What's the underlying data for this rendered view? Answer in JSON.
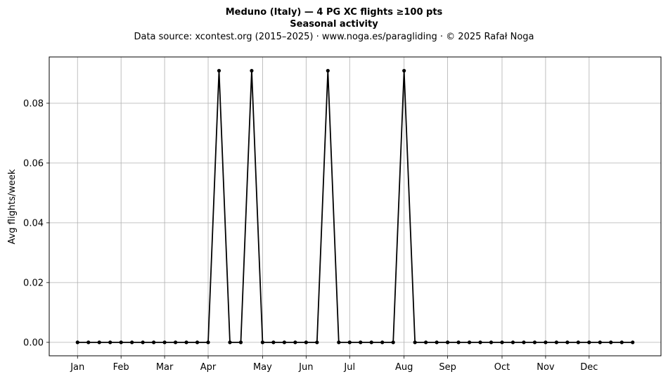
{
  "chart_data": {
    "type": "line",
    "title": "Meduno (Italy)  —  4 PG XC flights ≥100 pts",
    "subtitle": "Seasonal activity",
    "source": "Data source: xcontest.org (2015–2025)  ·  www.noga.es/paragliding  ·  © 2025 Rafał Noga",
    "xlabel": "",
    "ylabel": "Avg flights/week",
    "ylim": [
      -0.0045,
      0.0955
    ],
    "xlim": [
      -2.6,
      53.6
    ],
    "grid": true,
    "line_color": "#000000",
    "x_ticks": [
      {
        "label": "Jan",
        "week": 0
      },
      {
        "label": "Feb",
        "week": 4
      },
      {
        "label": "Mar",
        "week": 8
      },
      {
        "label": "Apr",
        "week": 12
      },
      {
        "label": "May",
        "week": 17
      },
      {
        "label": "Jun",
        "week": 21
      },
      {
        "label": "Jul",
        "week": 25
      },
      {
        "label": "Aug",
        "week": 30
      },
      {
        "label": "Sep",
        "week": 34
      },
      {
        "label": "Oct",
        "week": 39
      },
      {
        "label": "Nov",
        "week": 43
      },
      {
        "label": "Dec",
        "week": 47
      }
    ],
    "y_ticks": [
      {
        "label": "0.00",
        "value": 0.0
      },
      {
        "label": "0.02",
        "value": 0.02
      },
      {
        "label": "0.04",
        "value": 0.04
      },
      {
        "label": "0.06",
        "value": 0.06
      },
      {
        "label": "0.08",
        "value": 0.08
      }
    ],
    "series": [
      {
        "x": [
          0,
          1,
          2,
          3,
          4,
          5,
          6,
          7,
          8,
          9,
          10,
          11,
          12,
          13,
          14,
          15,
          16,
          17,
          18,
          19,
          20,
          21,
          22,
          23,
          24,
          25,
          26,
          27,
          28,
          29,
          30,
          31,
          32,
          33,
          34,
          35,
          36,
          37,
          38,
          39,
          40,
          41,
          42,
          43,
          44,
          45,
          46,
          47,
          48,
          49,
          50,
          51
        ],
        "values": [
          0,
          0,
          0,
          0,
          0,
          0,
          0,
          0,
          0,
          0,
          0,
          0,
          0,
          0.0909,
          0,
          0,
          0.0909,
          0,
          0,
          0,
          0,
          0,
          0,
          0.0909,
          0,
          0,
          0,
          0,
          0,
          0,
          0.0909,
          0,
          0,
          0,
          0,
          0,
          0,
          0,
          0,
          0,
          0,
          0,
          0,
          0,
          0,
          0,
          0,
          0,
          0,
          0,
          0,
          0
        ]
      }
    ]
  }
}
